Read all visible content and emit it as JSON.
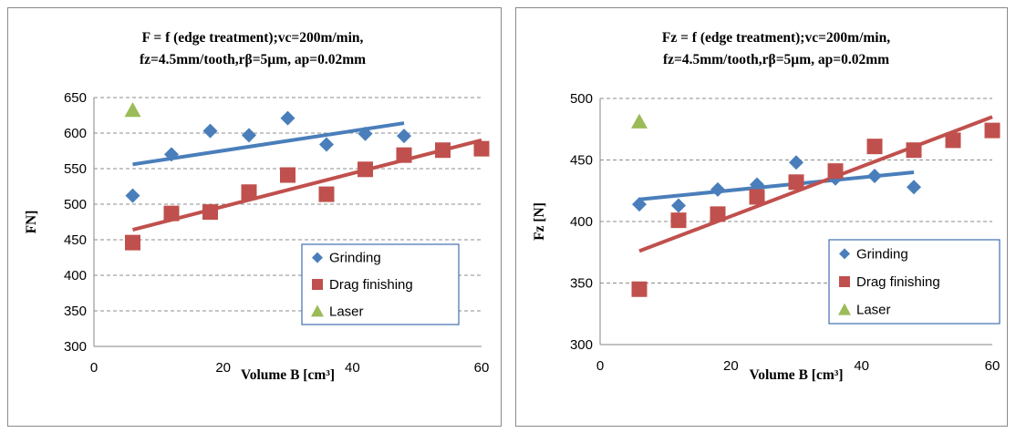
{
  "chart_data": [
    {
      "type": "scatter",
      "title_lines": [
        "F = f (edge treatment);vc=200m/min,",
        "fz=4.5mm/tooth,rβ=5µm, ap=0.02mm"
      ],
      "xlabel": "Volume B [cm³]",
      "ylabel": "FN]",
      "xlim": [
        0,
        60
      ],
      "ylim": [
        300,
        650
      ],
      "xticks": [
        0,
        20,
        40,
        60
      ],
      "yticks": [
        300,
        350,
        400,
        450,
        500,
        550,
        600,
        650
      ],
      "grid": "horizontal dashed",
      "legend_position": "bottom-right",
      "series": [
        {
          "name": "Grinding",
          "marker": "diamond",
          "color": "#4a7ebb",
          "x": [
            6,
            12,
            18,
            24,
            30,
            36,
            42,
            48
          ],
          "y": [
            512,
            570,
            603,
            597,
            621,
            584,
            599,
            596
          ],
          "trend": {
            "x": [
              6,
              48
            ],
            "y": [
              556,
              614
            ]
          }
        },
        {
          "name": "Drag finishing",
          "marker": "square",
          "color": "#c0504d",
          "x": [
            6,
            12,
            18,
            24,
            30,
            36,
            42,
            48,
            54,
            60
          ],
          "y": [
            446,
            487,
            489,
            517,
            541,
            514,
            549,
            569,
            576,
            578
          ],
          "trend": {
            "x": [
              6,
              60
            ],
            "y": [
              464,
              590
            ]
          }
        },
        {
          "name": "Laser",
          "marker": "triangle",
          "color": "#9bbb59",
          "x": [
            6
          ],
          "y": [
            632
          ]
        }
      ]
    },
    {
      "type": "scatter",
      "title_lines": [
        "Fz = f (edge treatment);vc=200m/min,",
        "fz=4.5mm/tooth,rβ=5µm, ap=0.02mm"
      ],
      "xlabel": "Volume B [cm³]",
      "ylabel": "Fz [N]",
      "xlim": [
        0,
        60
      ],
      "ylim": [
        300,
        500
      ],
      "xticks": [
        0,
        20,
        40,
        60
      ],
      "yticks": [
        300,
        350,
        400,
        450,
        500
      ],
      "grid": "horizontal dashed",
      "legend_position": "bottom-right",
      "series": [
        {
          "name": "Grinding",
          "marker": "diamond",
          "color": "#4a7ebb",
          "x": [
            6,
            12,
            18,
            24,
            30,
            36,
            42,
            48
          ],
          "y": [
            414,
            413,
            426,
            430,
            448,
            435,
            437,
            428
          ],
          "trend": {
            "x": [
              6,
              48
            ],
            "y": [
              418,
              440
            ]
          }
        },
        {
          "name": "Drag finishing",
          "marker": "square",
          "color": "#c0504d",
          "x": [
            6,
            12,
            18,
            24,
            30,
            36,
            42,
            48,
            54,
            60
          ],
          "y": [
            345,
            401,
            406,
            420,
            432,
            441,
            461,
            458,
            466,
            474
          ],
          "trend": {
            "x": [
              6,
              60
            ],
            "y": [
              376,
              485
            ]
          }
        },
        {
          "name": "Laser",
          "marker": "triangle",
          "color": "#9bbb59",
          "x": [
            6
          ],
          "y": [
            481
          ]
        }
      ]
    }
  ]
}
